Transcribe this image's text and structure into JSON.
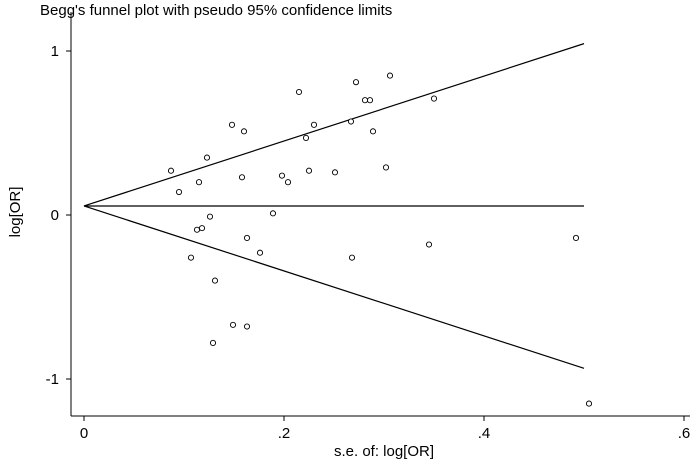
{
  "chart_data": {
    "type": "scatter",
    "title": "Begg's funnel plot with pseudo 95% confidence limits",
    "xlabel": "s.e. of: log[OR]",
    "ylabel": "log[OR]",
    "xlim": [
      0,
      0.6
    ],
    "ylim": [
      -1.25,
      1.15
    ],
    "x_ticks": [
      0,
      0.2,
      0.4,
      0.6
    ],
    "x_tick_labels": [
      "0",
      ".2",
      ".4",
      ".6"
    ],
    "y_ticks": [
      1,
      0,
      -1
    ],
    "y_tick_labels": [
      "1",
      "0",
      "-1"
    ],
    "grid": false,
    "pooled_estimate": 0.055,
    "funnel_max_se": 0.5,
    "funnel_upper_end": 1.045,
    "funnel_lower_end": -0.935,
    "points": [
      {
        "x": 0.087,
        "y": 0.27
      },
      {
        "x": 0.095,
        "y": 0.14
      },
      {
        "x": 0.107,
        "y": -0.26
      },
      {
        "x": 0.113,
        "y": -0.09
      },
      {
        "x": 0.115,
        "y": 0.2
      },
      {
        "x": 0.118,
        "y": -0.08
      },
      {
        "x": 0.123,
        "y": 0.35
      },
      {
        "x": 0.126,
        "y": -0.01
      },
      {
        "x": 0.129,
        "y": -0.78
      },
      {
        "x": 0.131,
        "y": -0.4
      },
      {
        "x": 0.148,
        "y": 0.55
      },
      {
        "x": 0.149,
        "y": -0.67
      },
      {
        "x": 0.158,
        "y": 0.23
      },
      {
        "x": 0.16,
        "y": 0.51
      },
      {
        "x": 0.163,
        "y": -0.14
      },
      {
        "x": 0.163,
        "y": -0.68
      },
      {
        "x": 0.176,
        "y": -0.23
      },
      {
        "x": 0.189,
        "y": 0.01
      },
      {
        "x": 0.198,
        "y": 0.24
      },
      {
        "x": 0.204,
        "y": 0.2
      },
      {
        "x": 0.215,
        "y": 0.75
      },
      {
        "x": 0.222,
        "y": 0.47
      },
      {
        "x": 0.225,
        "y": 0.27
      },
      {
        "x": 0.23,
        "y": 0.55
      },
      {
        "x": 0.251,
        "y": 0.26
      },
      {
        "x": 0.267,
        "y": 0.57
      },
      {
        "x": 0.268,
        "y": -0.26
      },
      {
        "x": 0.272,
        "y": 0.81
      },
      {
        "x": 0.281,
        "y": 0.7
      },
      {
        "x": 0.286,
        "y": 0.7
      },
      {
        "x": 0.289,
        "y": 0.51
      },
      {
        "x": 0.302,
        "y": 0.29
      },
      {
        "x": 0.306,
        "y": 0.85
      },
      {
        "x": 0.345,
        "y": -0.18
      },
      {
        "x": 0.35,
        "y": 0.71
      },
      {
        "x": 0.492,
        "y": -0.14
      },
      {
        "x": 0.505,
        "y": -1.15
      }
    ]
  }
}
